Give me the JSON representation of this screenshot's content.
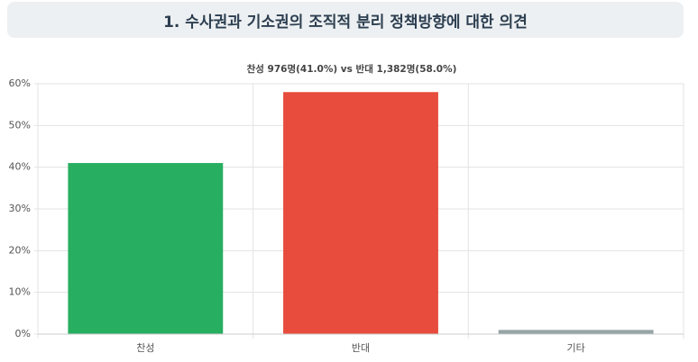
{
  "header": {
    "title": "1. 수사권과 기소권의 조직적 분리 정책방향에 대한 의견"
  },
  "chart_data": {
    "type": "bar",
    "title": "찬성 976명(41.0%) vs 반대 1,382명(58.0%)",
    "categories": [
      "찬성",
      "반대",
      "기타"
    ],
    "values": [
      41,
      58,
      1
    ],
    "colors": [
      "#27ae60",
      "#e74c3c",
      "#95a5a6"
    ],
    "ylim": [
      0,
      60
    ],
    "yticks": [
      {
        "value": 0,
        "label": "0%"
      },
      {
        "value": 10,
        "label": "10%"
      },
      {
        "value": 20,
        "label": "20%"
      },
      {
        "value": 30,
        "label": "30%"
      },
      {
        "value": 40,
        "label": "40%"
      },
      {
        "value": 50,
        "label": "50%"
      },
      {
        "value": 60,
        "label": "60%"
      }
    ],
    "grid": true
  }
}
